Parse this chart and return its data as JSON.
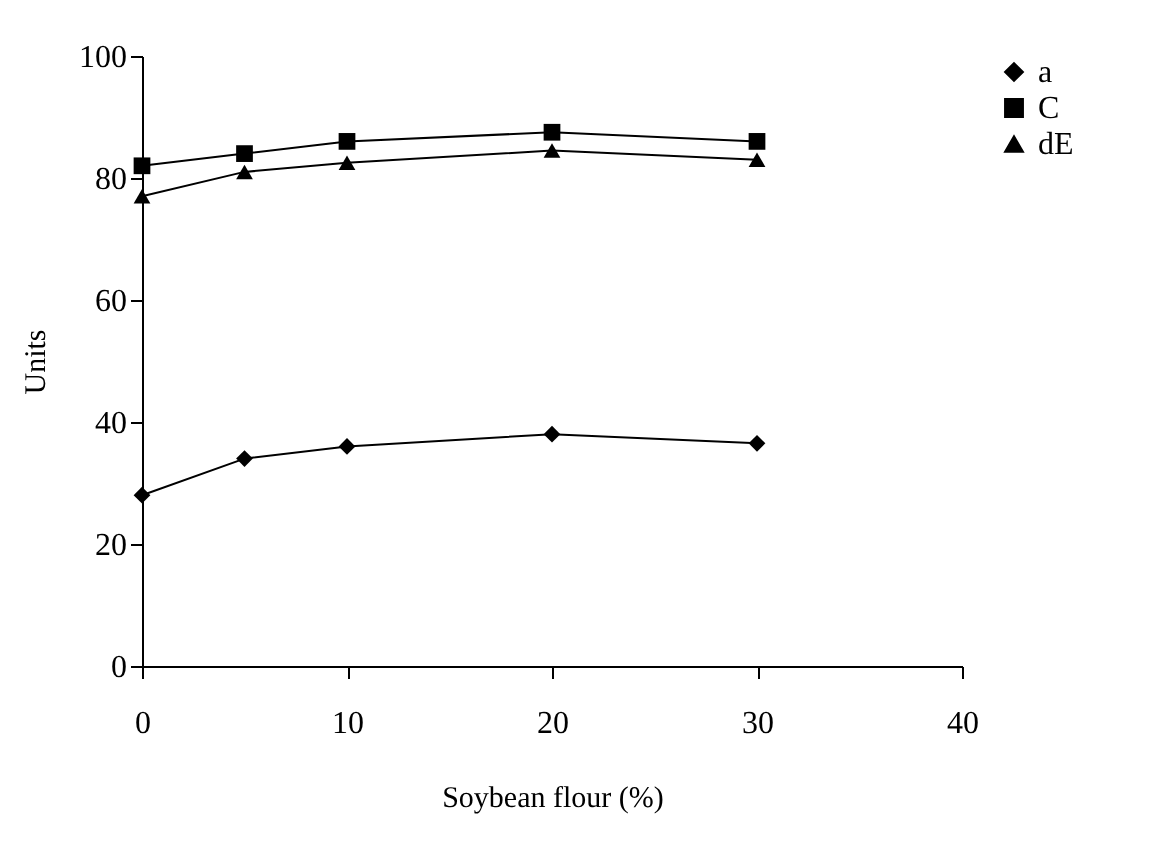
{
  "chart_data": {
    "type": "line",
    "xlabel": "Soybean flour (%)",
    "ylabel": "Units",
    "x": [
      0,
      5,
      10,
      20,
      30
    ],
    "series": [
      {
        "name": "a",
        "color": "#000000",
        "marker": "diamond",
        "values": [
          28,
          34,
          36,
          38,
          36.5
        ]
      },
      {
        "name": "C",
        "color": "#000000",
        "marker": "square",
        "values": [
          82,
          84,
          86,
          87.5,
          86
        ]
      },
      {
        "name": "dE",
        "color": "#000000",
        "marker": "triangle",
        "values": [
          77,
          81,
          82.5,
          84.5,
          83
        ]
      }
    ],
    "xlim": [
      0,
      40
    ],
    "xticks": [
      0,
      10,
      20,
      30,
      40
    ],
    "ylim": [
      0,
      100
    ],
    "yticks": [
      0,
      20,
      40,
      60,
      80,
      100
    ],
    "grid": false,
    "legend": "right",
    "line_style": "solid"
  }
}
